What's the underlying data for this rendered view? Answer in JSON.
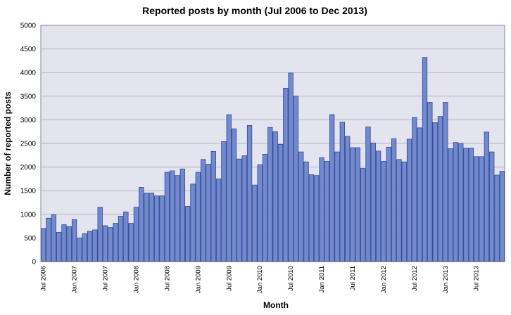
{
  "chart_data": {
    "type": "bar",
    "title": "Reported posts by month (Jul 2006 to Dec 2013)",
    "xlabel": "Month",
    "ylabel": "Number of reported posts",
    "ylim": [
      0,
      5000
    ],
    "yticks": [
      0,
      500,
      1000,
      1500,
      2000,
      2500,
      3000,
      3500,
      4000,
      4500,
      5000
    ],
    "grid": true,
    "legend": "none",
    "colors": {
      "bar_fill": "#7289cc",
      "bar_edge": "#2f4a9c",
      "plot_background": "#e4e4ee"
    },
    "xtick_labels": [
      {
        "index": 0,
        "label": "Jul 2006"
      },
      {
        "index": 6,
        "label": "Jan 2007"
      },
      {
        "index": 12,
        "label": "Jul 2007"
      },
      {
        "index": 18,
        "label": "Jan 2008"
      },
      {
        "index": 24,
        "label": "Jul 2008"
      },
      {
        "index": 30,
        "label": "Jan 2009"
      },
      {
        "index": 36,
        "label": "Jul 2009"
      },
      {
        "index": 42,
        "label": "Jan 2010"
      },
      {
        "index": 48,
        "label": "Jul 2010"
      },
      {
        "index": 54,
        "label": "Jan 2011"
      },
      {
        "index": 60,
        "label": "Jul 2011"
      },
      {
        "index": 66,
        "label": "Jan 2012"
      },
      {
        "index": 72,
        "label": "Jul 2012"
      },
      {
        "index": 78,
        "label": "Jan 2013"
      },
      {
        "index": 84,
        "label": "Jul 2013"
      }
    ],
    "categories": [
      "2006-07",
      "2006-08",
      "2006-09",
      "2006-10",
      "2006-11",
      "2006-12",
      "2007-01",
      "2007-02",
      "2007-03",
      "2007-04",
      "2007-05",
      "2007-06",
      "2007-07",
      "2007-08",
      "2007-09",
      "2007-10",
      "2007-11",
      "2007-12",
      "2008-01",
      "2008-02",
      "2008-03",
      "2008-04",
      "2008-05",
      "2008-06",
      "2008-07",
      "2008-08",
      "2008-09",
      "2008-10",
      "2008-11",
      "2008-12",
      "2009-01",
      "2009-02",
      "2009-03",
      "2009-04",
      "2009-05",
      "2009-06",
      "2009-07",
      "2009-08",
      "2009-09",
      "2009-10",
      "2009-11",
      "2009-12",
      "2010-01",
      "2010-02",
      "2010-03",
      "2010-04",
      "2010-05",
      "2010-06",
      "2010-07",
      "2010-08",
      "2010-09",
      "2010-10",
      "2010-11",
      "2010-12",
      "2011-01",
      "2011-02",
      "2011-03",
      "2011-04",
      "2011-05",
      "2011-06",
      "2011-07",
      "2011-08",
      "2011-09",
      "2011-10",
      "2011-11",
      "2011-12",
      "2012-01",
      "2012-02",
      "2012-03",
      "2012-04",
      "2012-05",
      "2012-06",
      "2012-07",
      "2012-08",
      "2012-09",
      "2012-10",
      "2012-11",
      "2012-12",
      "2013-01",
      "2013-02",
      "2013-03",
      "2013-04",
      "2013-05",
      "2013-06",
      "2013-07",
      "2013-08",
      "2013-09",
      "2013-10",
      "2013-11",
      "2013-12"
    ],
    "values": [
      700,
      920,
      990,
      620,
      780,
      740,
      890,
      500,
      590,
      640,
      670,
      1150,
      760,
      720,
      810,
      960,
      1050,
      810,
      1150,
      1570,
      1450,
      1450,
      1390,
      1390,
      1890,
      1920,
      1820,
      1960,
      1170,
      1640,
      1890,
      2160,
      2060,
      2330,
      1750,
      2540,
      3110,
      2810,
      2170,
      2240,
      2880,
      1620,
      2050,
      2270,
      2840,
      2750,
      2480,
      3670,
      3990,
      3500,
      2320,
      2110,
      1840,
      1820,
      2200,
      2120,
      3110,
      2320,
      2950,
      2650,
      2410,
      2410,
      1970,
      2850,
      2510,
      2340,
      2120,
      2420,
      2600,
      2160,
      2110,
      2590,
      3050,
      2830,
      4320,
      3370,
      2940,
      3070,
      3370,
      2390,
      2520,
      2500,
      2400,
      2400,
      2220,
      2220,
      2740,
      2320,
      1830,
      1910
    ]
  }
}
